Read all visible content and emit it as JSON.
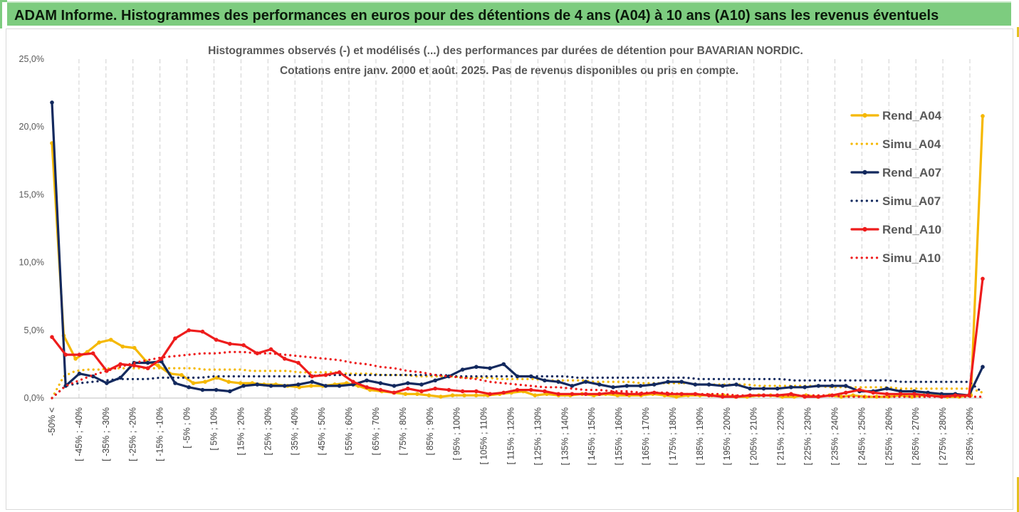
{
  "banner": {
    "title": "ADAM Informe. Histogrammes des performances en euros pour des détentions de 4 ans (A04) à 10 ans (A10) sans les revenus éventuels"
  },
  "chart_data": {
    "type": "line",
    "title_lines": [
      "Histogrammes observés (-) et modélisés (...) des performances par durées de détention pour BAVARIAN NORDIC.",
      "Cotations entre janv. 2000 et août. 2025. Pas de revenus disponibles ou pris en compte."
    ],
    "ylim": [
      0,
      25
    ],
    "yticks": [
      "0,0%",
      "5,0%",
      "10,0%",
      "15,0%",
      "20,0%",
      "25,0%"
    ],
    "grid": "vertical dashed",
    "legend_position": "right",
    "x_tick_labels": [
      "-50% <",
      "[ -45% ; -40%",
      "[ -35% ; -30%",
      "[ -25% ; -20%",
      "[ -15% ; -10%",
      "[ -5% ; 0%",
      "[ 5% ; 10%",
      "[ 15% ; 20%",
      "[ 25% ; 30%",
      "[ 35% ; 40%",
      "[ 45% ; 50%",
      "[ 55% ; 60%",
      "[ 65% ; 70%",
      "[ 75% ; 80%",
      "[ 85% ; 90%",
      "[ 95% ; 100%",
      "[ 105% ; 110%",
      "[ 115% ; 120%",
      "[ 125% ; 130%",
      "[ 135% ; 140%",
      "[ 145% ; 150%",
      "[ 155% ; 160%",
      "[ 165% ; 170%",
      "[ 175% ; 180%",
      "[ 185% ; 190%",
      "[ 195% ; 200%",
      "[ 205% ; 210%",
      "[ 215% ; 220%",
      "[ 225% ; 230%",
      "[ 235% ; 240%",
      "[ 245% ; 250%",
      "[ 255% ; 260%",
      "[ 265% ; 270%",
      "[ 275% ; 280%",
      "[ 285% ; 290%"
    ],
    "series": [
      {
        "name": "Rend_A04",
        "style": "solid",
        "color": "#f5b800",
        "values": [
          18.8,
          4.6,
          2.9,
          3.4,
          4.1,
          4.3,
          3.8,
          3.7,
          2.7,
          2.4,
          1.8,
          1.7,
          1.1,
          1.2,
          1.5,
          1.2,
          1.1,
          1.1,
          1.0,
          1.0,
          0.9,
          0.8,
          0.9,
          0.9,
          1.0,
          1.1,
          0.9,
          0.6,
          0.5,
          0.4,
          0.3,
          0.3,
          0.2,
          0.1,
          0.2,
          0.2,
          0.2,
          0.2,
          0.3,
          0.4,
          0.5,
          0.2,
          0.3,
          0.2,
          0.2,
          0.3,
          0.2,
          0.3,
          0.2,
          0.2,
          0.2,
          0.3,
          0.2,
          0.1,
          0.2,
          0.2,
          0.2,
          0.2,
          0.1,
          0.1,
          0.2,
          0.2,
          0.1,
          0.1,
          0.2,
          0.1,
          0.2,
          0.1,
          0.2,
          0.1,
          0.1,
          0.1,
          0.2,
          0.1,
          0.2,
          0.2,
          0.1,
          0.1,
          0.2,
          20.8
        ]
      },
      {
        "name": "Simu_A04",
        "style": "dotted",
        "color": "#f5b800",
        "values": [
          0.0,
          1.6,
          2.0,
          2.1,
          2.1,
          2.2,
          2.2,
          2.2,
          2.2,
          2.2,
          2.2,
          2.2,
          2.2,
          2.1,
          2.1,
          2.1,
          2.1,
          2.0,
          2.0,
          2.0,
          2.0,
          1.9,
          1.9,
          1.9,
          1.9,
          1.8,
          1.8,
          1.8,
          1.7,
          1.7,
          1.7,
          1.6,
          1.6,
          1.6,
          1.6,
          1.5,
          1.5,
          1.5,
          1.4,
          1.4,
          1.4,
          1.4,
          1.3,
          1.3,
          1.3,
          1.3,
          1.2,
          1.2,
          1.2,
          1.2,
          1.1,
          1.1,
          1.1,
          1.1,
          1.1,
          1.0,
          1.0,
          1.0,
          1.0,
          1.0,
          0.9,
          0.9,
          0.9,
          0.9,
          0.9,
          0.9,
          0.8,
          0.8,
          0.8,
          0.8,
          0.8,
          0.8,
          0.7,
          0.7,
          0.7,
          0.7,
          0.7,
          0.7,
          0.7,
          0.4
        ]
      },
      {
        "name": "Rend_A07",
        "style": "solid",
        "color": "#13295e",
        "values": [
          21.8,
          0.9,
          1.8,
          1.6,
          1.1,
          1.5,
          2.6,
          2.6,
          2.7,
          1.1,
          0.8,
          0.6,
          0.6,
          0.5,
          0.9,
          1.0,
          0.9,
          0.9,
          1.0,
          1.2,
          0.9,
          0.9,
          1.0,
          1.3,
          1.1,
          0.9,
          1.1,
          1.0,
          1.3,
          1.6,
          2.1,
          2.3,
          2.2,
          2.5,
          1.6,
          1.6,
          1.3,
          1.2,
          0.9,
          1.2,
          1.0,
          0.8,
          0.9,
          0.9,
          1.0,
          1.2,
          1.2,
          1.0,
          1.0,
          0.9,
          1.0,
          0.7,
          0.7,
          0.7,
          0.8,
          0.8,
          0.9,
          0.9,
          0.9,
          0.5,
          0.5,
          0.7,
          0.5,
          0.5,
          0.4,
          0.3,
          0.3,
          0.2,
          2.3
        ]
      },
      {
        "name": "Simu_A07",
        "style": "dotted",
        "color": "#13295e",
        "values": [
          0.0,
          0.9,
          1.1,
          1.2,
          1.3,
          1.4,
          1.4,
          1.4,
          1.5,
          1.5,
          1.5,
          1.5,
          1.6,
          1.6,
          1.6,
          1.6,
          1.6,
          1.6,
          1.6,
          1.6,
          1.7,
          1.7,
          1.7,
          1.7,
          1.7,
          1.7,
          1.7,
          1.7,
          1.7,
          1.7,
          1.6,
          1.6,
          1.6,
          1.6,
          1.6,
          1.6,
          1.6,
          1.6,
          1.6,
          1.5,
          1.5,
          1.5,
          1.5,
          1.5,
          1.5,
          1.5,
          1.5,
          1.5,
          1.4,
          1.4,
          1.4,
          1.4,
          1.4,
          1.4,
          1.4,
          1.3,
          1.3,
          1.3,
          1.3,
          1.3,
          1.3,
          1.3,
          1.3,
          1.2,
          1.2,
          1.2,
          1.2,
          1.2,
          1.2,
          0.4
        ]
      },
      {
        "name": "Rend_A10",
        "style": "solid",
        "color": "#ee1c1c",
        "values": [
          4.5,
          3.2,
          3.2,
          3.3,
          2.0,
          2.5,
          2.4,
          2.2,
          2.9,
          4.4,
          5.0,
          4.9,
          4.3,
          4.0,
          3.9,
          3.3,
          3.6,
          2.9,
          2.6,
          1.6,
          1.7,
          1.9,
          1.2,
          0.8,
          0.6,
          0.4,
          0.7,
          0.5,
          0.7,
          0.6,
          0.5,
          0.5,
          0.3,
          0.4,
          0.6,
          0.6,
          0.5,
          0.3,
          0.3,
          0.3,
          0.3,
          0.4,
          0.3,
          0.3,
          0.4,
          0.3,
          0.3,
          0.3,
          0.2,
          0.1,
          0.1,
          0.2,
          0.2,
          0.2,
          0.3,
          0.1,
          0.1,
          0.2,
          0.4,
          0.6,
          0.4,
          0.3,
          0.3,
          0.3,
          0.2,
          0.1,
          0.2,
          0.2,
          8.8
        ]
      },
      {
        "name": "Simu_A10",
        "style": "dotted",
        "color": "#ee1c1c",
        "values": [
          0.0,
          0.9,
          1.3,
          1.7,
          2.0,
          2.3,
          2.6,
          2.8,
          3.0,
          3.1,
          3.2,
          3.3,
          3.3,
          3.4,
          3.4,
          3.3,
          3.3,
          3.2,
          3.1,
          3.0,
          2.9,
          2.8,
          2.6,
          2.5,
          2.3,
          2.2,
          2.0,
          1.9,
          1.7,
          1.6,
          1.5,
          1.4,
          1.2,
          1.1,
          1.0,
          0.9,
          0.8,
          0.8,
          0.7,
          0.6,
          0.6,
          0.5,
          0.5,
          0.4,
          0.4,
          0.4,
          0.3,
          0.3,
          0.3,
          0.3,
          0.2,
          0.2,
          0.2,
          0.2,
          0.2,
          0.2,
          0.2,
          0.2,
          0.1,
          0.1,
          0.1,
          0.1,
          0.1,
          0.1,
          0.1,
          0.1,
          0.1,
          0.1,
          0.1
        ]
      }
    ]
  }
}
